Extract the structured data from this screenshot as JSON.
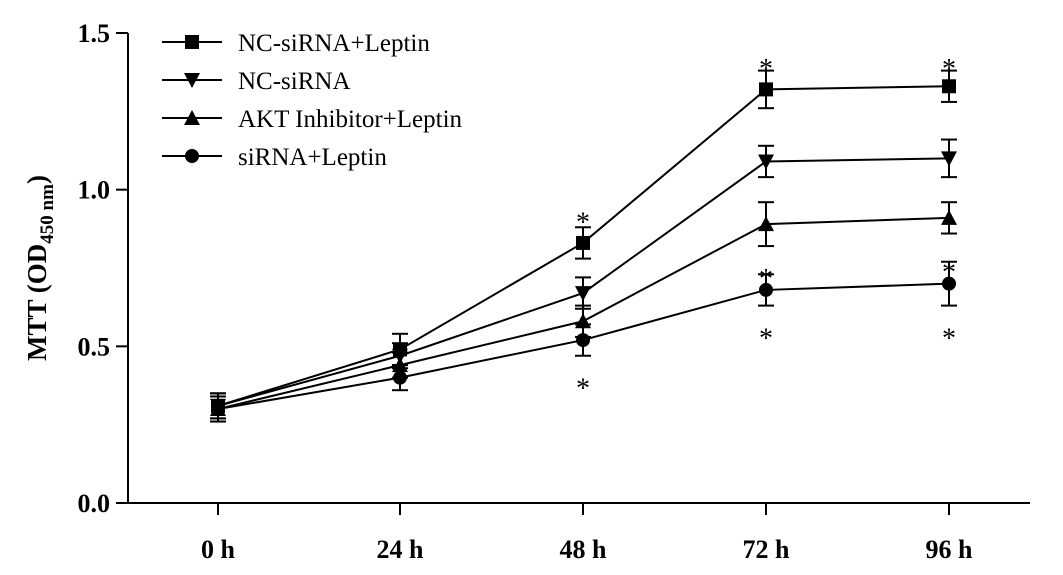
{
  "chart_data": {
    "type": "line",
    "ylabel": "MTT (OD",
    "ylabel_subscript": "450 nm",
    "ylabel_close": ")",
    "xlabel": "",
    "categories": [
      "0 h",
      "24 h",
      "48 h",
      "72 h",
      "96 h"
    ],
    "ylim": [
      0.0,
      1.5
    ],
    "yticks": [
      0.0,
      0.5,
      1.0,
      1.5
    ],
    "ytick_labels": [
      "0.0",
      "0.5",
      "1.0",
      "1.5"
    ],
    "grid": false,
    "legend_position": "top-left",
    "series": [
      {
        "name": "NC-siRNA+Leptin",
        "marker": "square",
        "values": [
          0.31,
          0.49,
          0.83,
          1.32,
          1.33
        ],
        "errors": [
          0.04,
          0.05,
          0.05,
          0.06,
          0.05
        ]
      },
      {
        "name": "NC-siRNA",
        "marker": "triangle-down",
        "values": [
          0.31,
          0.47,
          0.67,
          1.09,
          1.1
        ],
        "errors": [
          0.04,
          0.04,
          0.05,
          0.05,
          0.06
        ]
      },
      {
        "name": "AKT Inhibitor+Leptin",
        "marker": "triangle-up",
        "values": [
          0.3,
          0.44,
          0.58,
          0.89,
          0.91
        ],
        "errors": [
          0.04,
          0.04,
          0.05,
          0.07,
          0.05
        ]
      },
      {
        "name": "siRNA+Leptin",
        "marker": "circle",
        "values": [
          0.3,
          0.4,
          0.52,
          0.68,
          0.7
        ],
        "errors": [
          0.04,
          0.04,
          0.05,
          0.05,
          0.07
        ]
      }
    ],
    "annotations": [
      {
        "text": "*",
        "category": "48 h",
        "value": 0.93
      },
      {
        "text": "*",
        "category": "48 h",
        "value": 0.4
      },
      {
        "text": "*",
        "category": "72 h",
        "value": 1.42
      },
      {
        "text": "*",
        "category": "72 h",
        "value": 0.75
      },
      {
        "text": "*",
        "category": "72 h",
        "value": 0.56
      },
      {
        "text": "*",
        "category": "96 h",
        "value": 1.42
      },
      {
        "text": "*",
        "category": "96 h",
        "value": 0.77
      },
      {
        "text": "*",
        "category": "96 h",
        "value": 0.56
      }
    ]
  }
}
